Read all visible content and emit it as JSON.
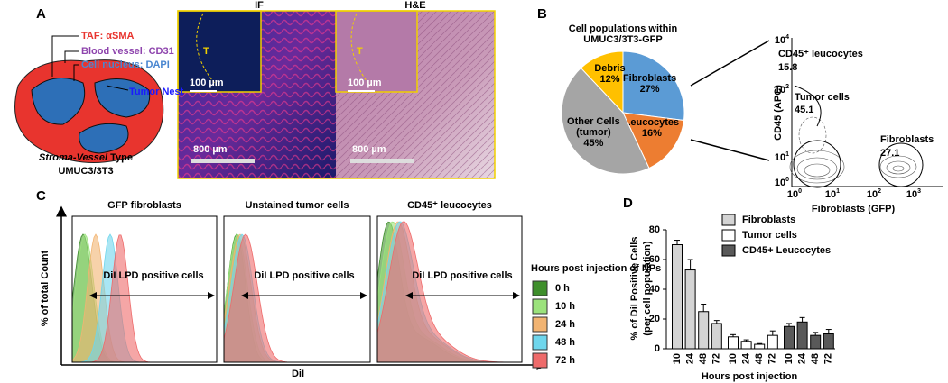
{
  "panel_a": {
    "label": "A",
    "legend": [
      {
        "text": "TAF: αSMA",
        "color": "#e8342e"
      },
      {
        "text": "Blood vessel: CD31",
        "color": "#8e44ad"
      },
      {
        "text": "Cell nucleus: DAPI",
        "color": "#4a86d0"
      }
    ],
    "tumor_nest": "Tumor Nest",
    "type_name": "Stroma-Vessel",
    "type_word": "Type",
    "model": "UMUC3/3T3"
  },
  "micrographs": {
    "titles": [
      "IF",
      "H&E"
    ],
    "inset_label": "T",
    "inset_scale": "100 µm",
    "scale": "800 µm"
  },
  "chart_data": [
    {
      "type": "pie",
      "panel_label": "B",
      "title": "Cell populations within UMUC3/3T3-GFP",
      "categories": [
        "Fibroblasts",
        "Leucocytes",
        "Other Cells (tumor)",
        "Debris"
      ],
      "values": [
        27,
        16,
        45,
        12
      ],
      "value_labels": [
        "27%",
        "16%",
        "45%",
        "12%"
      ],
      "colors": [
        "#5b9bd5",
        "#ed7d31",
        "#a5a5a5",
        "#ffc000"
      ]
    },
    {
      "type": "bar",
      "panel_label": "D",
      "ylabel": [
        "% of DiI Positive Cells",
        "(per cell population)"
      ],
      "xlabel": "Hours post injection",
      "categories": [
        "10",
        "24",
        "48",
        "72"
      ],
      "ylim": [
        0,
        80
      ],
      "yticks": [
        0,
        20,
        40,
        60,
        80
      ],
      "series": [
        {
          "name": "Fibroblasts",
          "color": "#d4d4d4",
          "values": [
            70,
            53,
            25,
            17
          ],
          "errors": [
            3,
            7,
            5,
            2
          ]
        },
        {
          "name": "Tumor cells",
          "color": "#ffffff",
          "values": [
            8,
            5,
            3,
            9
          ],
          "errors": [
            1.5,
            1,
            0.5,
            3
          ]
        },
        {
          "name": "CD45+ Leucocytes",
          "color": "#595959",
          "values": [
            15,
            18,
            9,
            10
          ],
          "errors": [
            2,
            3,
            2,
            3
          ]
        }
      ]
    }
  ],
  "flow": {
    "populations": [
      {
        "name": "CD45⁺ leucocytes",
        "value": "15.8"
      },
      {
        "name": "Tumor cells",
        "value": "45.1"
      },
      {
        "name": "Fibroblasts",
        "value": "27.1"
      }
    ],
    "xlabel": "Fibroblasts (GFP)",
    "ylabel": "CD45 (APC)",
    "yticks": [
      {
        "base": "10",
        "exp": "0"
      },
      {
        "base": "10",
        "exp": "1"
      },
      {
        "base": "10",
        "exp": "2"
      },
      {
        "base": "10",
        "exp": "4"
      }
    ],
    "xticks": [
      {
        "base": "10",
        "exp": "0"
      },
      {
        "base": "10",
        "exp": "1"
      },
      {
        "base": "10",
        "exp": "2"
      },
      {
        "base": "10",
        "exp": "3"
      }
    ]
  },
  "panel_c": {
    "label": "C",
    "titles": [
      "GFP fibroblasts",
      "Unstained tumor cells",
      "CD45⁺ leucocytes"
    ],
    "gate_label": "DiI LPD positive cells",
    "ylabel": "% of total Count",
    "xlabel": "DiI",
    "legend": {
      "title": "Hours post injection of NPs",
      "entries": [
        {
          "name": "0 h",
          "color": "#3f8f2c"
        },
        {
          "name": "10 h",
          "color": "#9be27c"
        },
        {
          "name": "24 h",
          "color": "#f2b472"
        },
        {
          "name": "48 h",
          "color": "#6fd6ec"
        },
        {
          "name": "72 h",
          "color": "#ee6b6b"
        }
      ]
    }
  }
}
